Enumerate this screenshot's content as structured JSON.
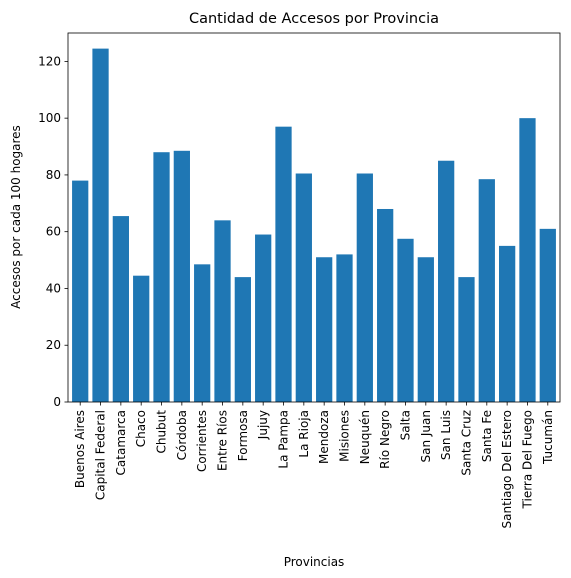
{
  "chart_data": {
    "type": "bar",
    "title": "Cantidad de Accesos por Provincia",
    "xlabel": "Provincias",
    "ylabel": "Accesos por cada 100 hogares",
    "ylim": [
      0,
      130
    ],
    "yticks": [
      0,
      20,
      40,
      60,
      80,
      100,
      120
    ],
    "bar_color": "#1f77b4",
    "grid": false,
    "categories": [
      "Buenos Aires",
      "Capital Federal",
      "Catamarca",
      "Chaco",
      "Chubut",
      "Córdoba",
      "Corrientes",
      "Entre Ríos",
      "Formosa",
      "Jujuy",
      "La Pampa",
      "La Rioja",
      "Mendoza",
      "Misiones",
      "Neuquén",
      "Río Negro",
      "Salta",
      "San Juan",
      "San Luis",
      "Santa Cruz",
      "Santa Fe",
      "Santiago Del Estero",
      "Tierra Del Fuego",
      "Tucumán"
    ],
    "values": [
      78,
      124.5,
      65.5,
      44.5,
      88,
      88.5,
      48.5,
      64,
      44,
      59,
      97,
      80.5,
      51,
      52,
      80.5,
      68,
      57.5,
      51,
      85,
      44,
      78.5,
      55,
      100,
      61
    ]
  }
}
